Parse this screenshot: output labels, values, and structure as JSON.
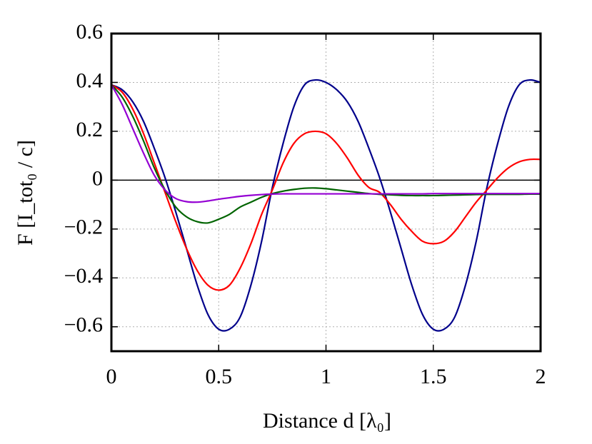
{
  "chart_data": {
    "type": "line",
    "xlabel": "Distance d [λ₀]",
    "ylabel": "F [I_tot₀ / c]",
    "x": [
      0,
      0.05,
      0.1,
      0.15,
      0.2,
      0.25,
      0.3,
      0.35,
      0.4,
      0.45,
      0.5,
      0.55,
      0.6,
      0.65,
      0.7,
      0.75,
      0.8,
      0.85,
      0.9,
      0.95,
      1,
      1.05,
      1.1,
      1.15,
      1.2,
      1.25,
      1.3,
      1.35,
      1.4,
      1.45,
      1.5,
      1.55,
      1.6,
      1.65,
      1.7,
      1.75,
      1.8,
      1.85,
      1.9,
      1.95,
      2
    ],
    "series": [
      {
        "color": "#00008b",
        "values": [
          0.39,
          0.37,
          0.32,
          0.24,
          0.13,
          0.01,
          -0.13,
          -0.28,
          -0.43,
          -0.55,
          -0.61,
          -0.61,
          -0.56,
          -0.43,
          -0.25,
          -0.03,
          0.15,
          0.3,
          0.39,
          0.41,
          0.4,
          0.37,
          0.32,
          0.24,
          0.13,
          0.01,
          -0.13,
          -0.28,
          -0.43,
          -0.55,
          -0.61,
          -0.61,
          -0.56,
          -0.43,
          -0.25,
          -0.03,
          0.15,
          0.3,
          0.39,
          0.41,
          0.4
        ]
      },
      {
        "color": "#ff0000",
        "values": [
          0.39,
          0.36,
          0.29,
          0.19,
          0.07,
          -0.05,
          -0.17,
          -0.28,
          -0.37,
          -0.43,
          -0.45,
          -0.43,
          -0.36,
          -0.26,
          -0.14,
          -0.04,
          0.07,
          0.15,
          0.19,
          0.2,
          0.19,
          0.15,
          0.09,
          0.02,
          -0.03,
          -0.05,
          -0.1,
          -0.16,
          -0.21,
          -0.25,
          -0.26,
          -0.25,
          -0.21,
          -0.15,
          -0.09,
          -0.04,
          0.01,
          0.05,
          0.075,
          0.085,
          0.085
        ]
      },
      {
        "color": "#006400",
        "values": [
          0.39,
          0.34,
          0.26,
          0.16,
          0.05,
          -0.04,
          -0.11,
          -0.15,
          -0.17,
          -0.175,
          -0.16,
          -0.14,
          -0.11,
          -0.09,
          -0.07,
          -0.055,
          -0.045,
          -0.038,
          -0.033,
          -0.032,
          -0.035,
          -0.04,
          -0.045,
          -0.05,
          -0.055,
          -0.058,
          -0.06,
          -0.062,
          -0.063,
          -0.063,
          -0.063,
          -0.062,
          -0.061,
          -0.06,
          -0.059,
          -0.058,
          -0.058,
          -0.058,
          -0.058,
          -0.057,
          -0.057
        ]
      },
      {
        "color": "#9400d3",
        "values": [
          0.39,
          0.31,
          0.21,
          0.11,
          0.02,
          -0.04,
          -0.075,
          -0.088,
          -0.09,
          -0.085,
          -0.078,
          -0.072,
          -0.066,
          -0.062,
          -0.059,
          -0.057,
          -0.056,
          -0.056,
          -0.056,
          -0.056,
          -0.056,
          -0.056,
          -0.056,
          -0.056,
          -0.056,
          -0.056,
          -0.056,
          -0.056,
          -0.056,
          -0.056,
          -0.055,
          -0.055,
          -0.055,
          -0.055,
          -0.055,
          -0.055,
          -0.055,
          -0.055,
          -0.055,
          -0.055,
          -0.055
        ]
      }
    ],
    "xlim": [
      0,
      2
    ],
    "xticks": [
      0,
      0.5,
      1,
      1.5,
      2
    ],
    "ylim": [
      -0.7,
      0.6
    ],
    "yticks": [
      {
        "value": -0.6,
        "label": "−0.6"
      },
      {
        "value": -0.4,
        "label": "−0.4"
      },
      {
        "value": -0.2,
        "label": "−0.2"
      },
      0,
      0.2,
      0.4,
      0.6
    ],
    "grid": true,
    "zero_line": true
  }
}
